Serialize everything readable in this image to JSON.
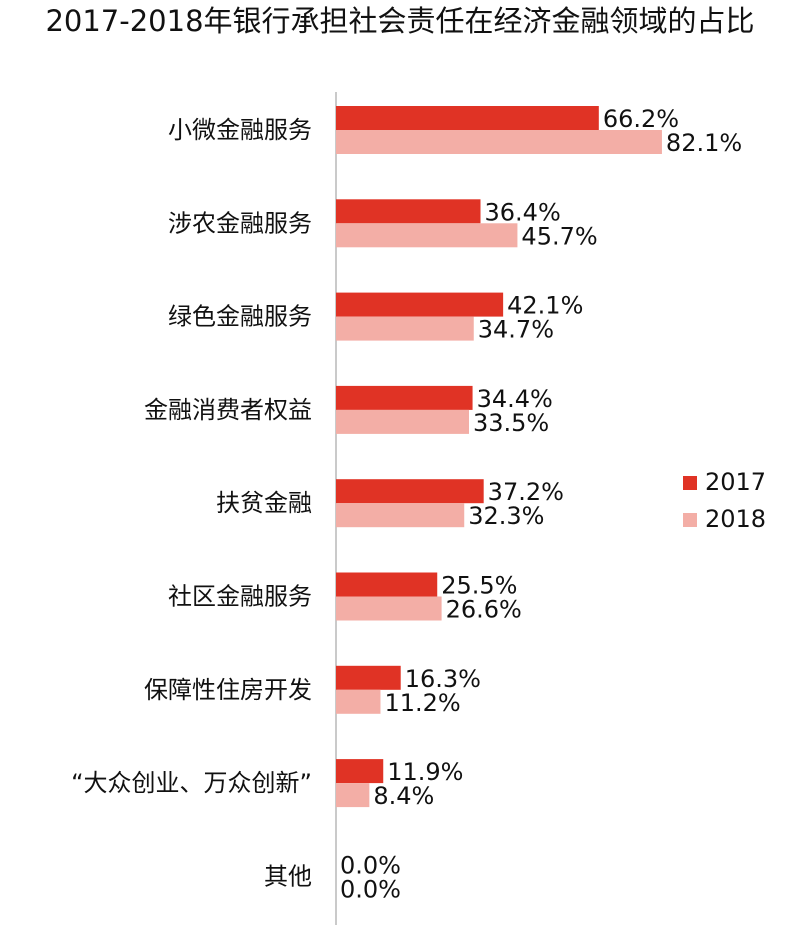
{
  "chart_data": {
    "type": "bar",
    "orientation": "horizontal",
    "title": "2017-2018年银行承担社会责任在经济金融领域的占比",
    "categories": [
      "小微金融服务",
      "涉农金融服务",
      "绿色金融服务",
      "金融消费者权益",
      "扶贫金融",
      "社区金融服务",
      "保障性住房开发",
      "“大众创业、万众创新”",
      "其他"
    ],
    "series": [
      {
        "name": "2017",
        "color": "#e03325",
        "values": [
          66.2,
          36.4,
          42.1,
          34.4,
          37.2,
          25.5,
          16.3,
          11.9,
          0.0
        ],
        "labels": [
          "66.2%",
          "36.4%",
          "42.1%",
          "34.4%",
          "37.2%",
          "25.5%",
          "16.3%",
          "11.9%",
          "0.0%"
        ]
      },
      {
        "name": "2018",
        "color": "#f3aea6",
        "values": [
          82.1,
          45.7,
          34.7,
          33.5,
          32.3,
          26.6,
          11.2,
          8.4,
          0.0
        ],
        "labels": [
          "82.1%",
          "45.7%",
          "34.7%",
          "33.5%",
          "32.3%",
          "26.6%",
          "11.2%",
          "8.4%",
          "0.0%"
        ]
      }
    ],
    "xlim": [
      0,
      100
    ],
    "grid": false,
    "legend_position": "right"
  }
}
